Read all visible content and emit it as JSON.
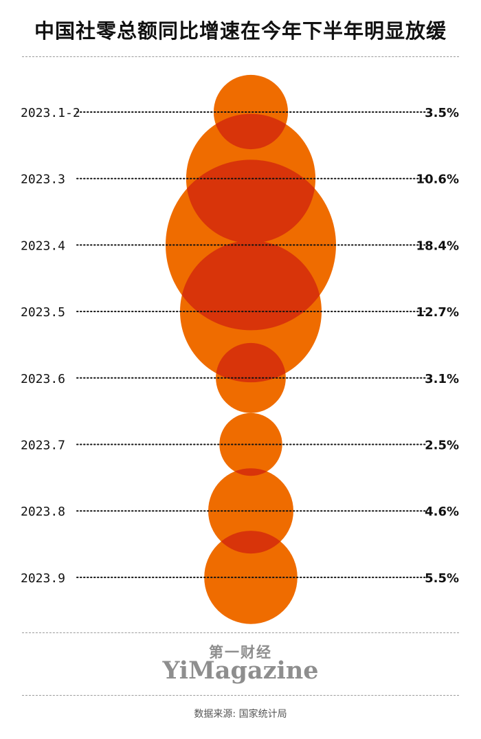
{
  "title": "中国社零总额同比增速在今年下半年明显放缓",
  "chart_data": {
    "type": "bubble",
    "title": "中国社零总额同比增速在今年下半年明显放缓",
    "unit": "%",
    "categories": [
      "2023.1-2",
      "2023.3",
      "2023.4",
      "2023.5",
      "2023.6",
      "2023.7",
      "2023.8",
      "2023.9"
    ],
    "values": [
      3.5,
      10.6,
      18.4,
      12.7,
      3.1,
      2.5,
      4.6,
      5.5
    ],
    "value_labels": [
      "3.5%",
      "10.6%",
      "18.4%",
      "12.7%",
      "3.1%",
      "2.5%",
      "4.6%",
      "5.5%"
    ],
    "colors": {
      "bubble": "#ef6c00",
      "overlap": "#d8340a"
    }
  },
  "brand": {
    "cn": "第一财经",
    "en": "YiMagazine"
  },
  "source": "数据来源: 国家统计局"
}
